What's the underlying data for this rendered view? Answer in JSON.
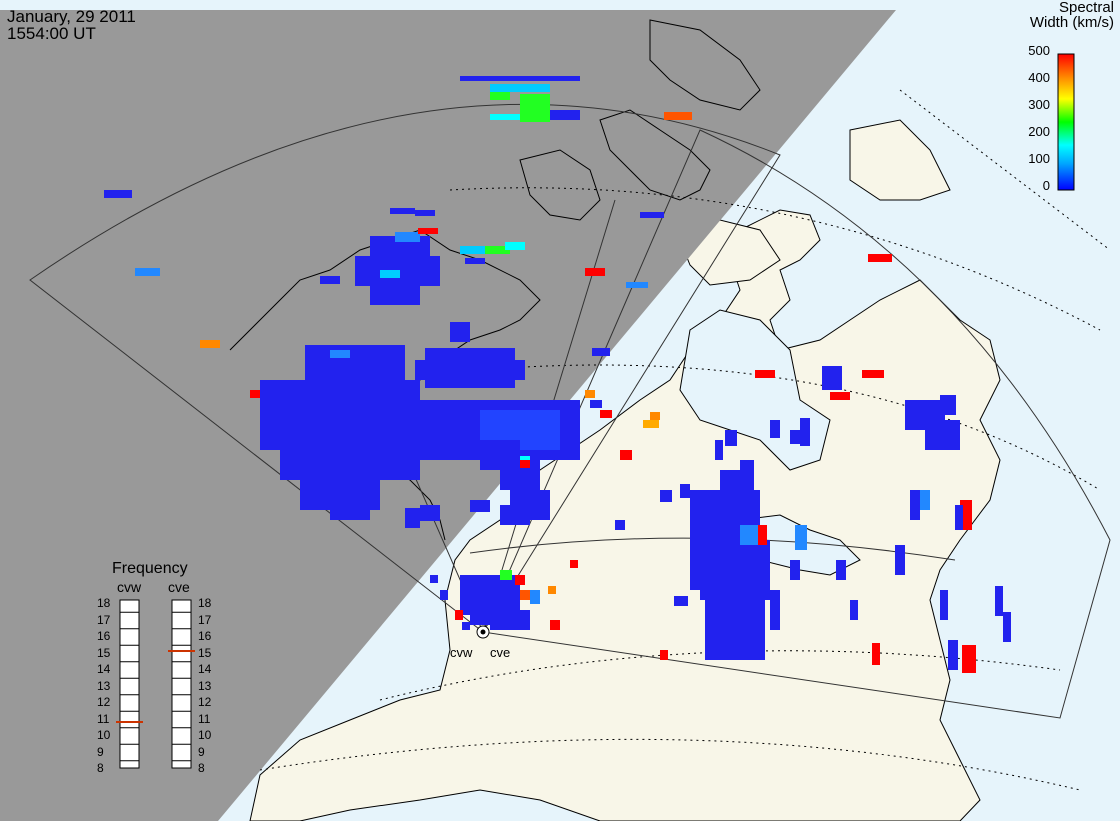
{
  "header": {
    "date": "January, 29 2011",
    "time": "1554:00 UT"
  },
  "colorbar": {
    "title_line1": "Spectral",
    "title_line2": "Width (km/s)",
    "ticks": [
      "500",
      "400",
      "300",
      "200",
      "100",
      "0"
    ],
    "colors": [
      "#0000ff",
      "#00aaff",
      "#00ffff",
      "#00ff00",
      "#ffff00",
      "#ff8800",
      "#ff0000"
    ]
  },
  "frequency_panel": {
    "title": "Frequency",
    "radars": [
      {
        "name": "cvw",
        "value_mhz": 10.9
      },
      {
        "name": "cve",
        "value_mhz": 15.1
      }
    ],
    "scale": [
      "18",
      "17",
      "16",
      "15",
      "14",
      "13",
      "12",
      "11",
      "10",
      "9",
      "8"
    ]
  },
  "radar_sites": [
    {
      "name": "cvw"
    },
    {
      "name": "cve"
    }
  ],
  "map_colors": {
    "ocean": "#e6f4fb",
    "land": "#f8f6e8",
    "night": "#999999",
    "coast": "#000000"
  }
}
